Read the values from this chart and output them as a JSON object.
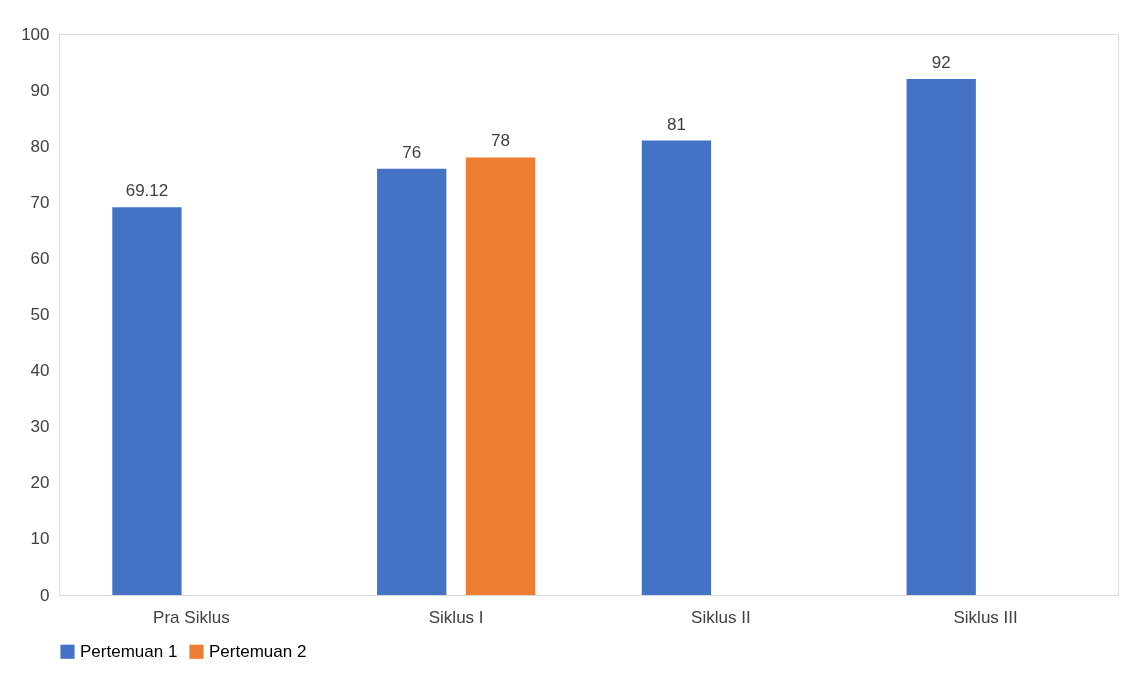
{
  "chart_data": {
    "type": "bar",
    "categories": [
      "Pra Siklus",
      "Siklus I",
      "Siklus II",
      "Siklus III"
    ],
    "series": [
      {
        "name": "Pertemuan 1",
        "color": "#4472c4",
        "values": [
          69.12,
          76,
          81,
          92
        ]
      },
      {
        "name": "Pertemuan 2",
        "color": "#ed7d31",
        "values": [
          null,
          78,
          null,
          null
        ]
      }
    ],
    "ylim": [
      0,
      100
    ],
    "yticks": [
      0,
      10,
      20,
      30,
      40,
      50,
      60,
      70,
      80,
      90,
      100
    ],
    "grid": false,
    "legend": "bottom",
    "data_labels": true
  }
}
